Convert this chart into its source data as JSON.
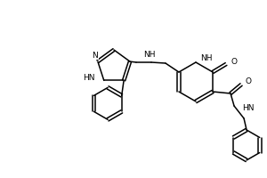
{
  "bg_color": "#ffffff",
  "line_color": "#000000",
  "line_width": 1.1,
  "font_size": 6.5,
  "figsize": [
    3.0,
    2.0
  ],
  "dpi": 100,
  "xlim": [
    0,
    300
  ],
  "ylim": [
    0,
    200
  ]
}
